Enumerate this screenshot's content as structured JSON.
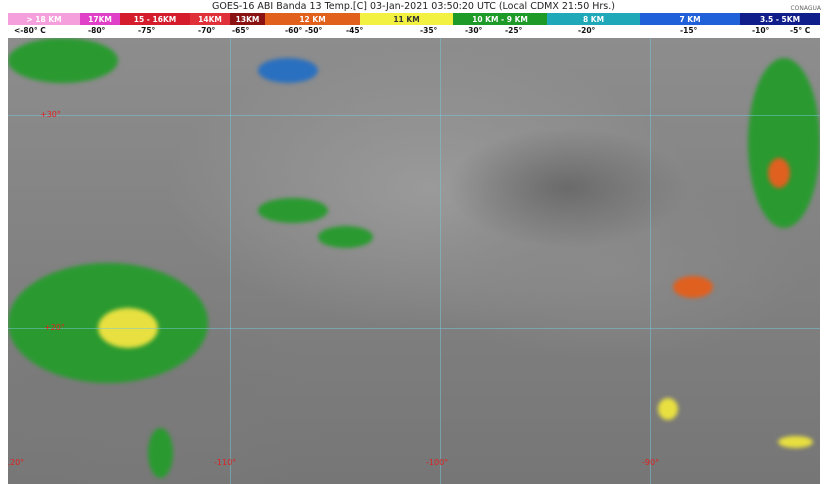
{
  "title": "GOES-16 ABI Banda 13 Temp.[C] 03-Jan-2021 03:50:20 UTC (Local CDMX  21:50 Hrs.)",
  "logo": "CONAGUA",
  "legend": [
    {
      "label": "> 18 KM",
      "color": "#f5a0dc"
    },
    {
      "label": "17KM",
      "color": "#e040c8"
    },
    {
      "label": "15 - 16KM",
      "color": "#d41c2c"
    },
    {
      "label": "14KM",
      "color": "#e0303a"
    },
    {
      "label": "13KM",
      "color": "#8a1212"
    },
    {
      "label": "12 KM",
      "color": "#e0601c"
    },
    {
      "label": "11 KM",
      "color": "#f2f040"
    },
    {
      "label": "10 KM - 9 KM",
      "color": "#1e9a28"
    },
    {
      "label": "8 KM",
      "color": "#1ea8b8"
    },
    {
      "label": "7 KM",
      "color": "#2060d8"
    },
    {
      "label": "3.5 - 5KM",
      "color": "#101e8c"
    }
  ],
  "temps": [
    "<-80° C",
    "-80°",
    "-75°",
    "-70°",
    "-65°",
    "-60°  -50°",
    "-45°",
    "-35°",
    "-30°",
    "-25°",
    "-20°",
    "-15°",
    "-10°",
    "-5°  C"
  ],
  "grid_labels": {
    "lat30": "+30°",
    "lat20": "+20°",
    "lon120": "-120°",
    "lon110": "-110°",
    "lon100": "-100°",
    "lon90": "-90°"
  }
}
